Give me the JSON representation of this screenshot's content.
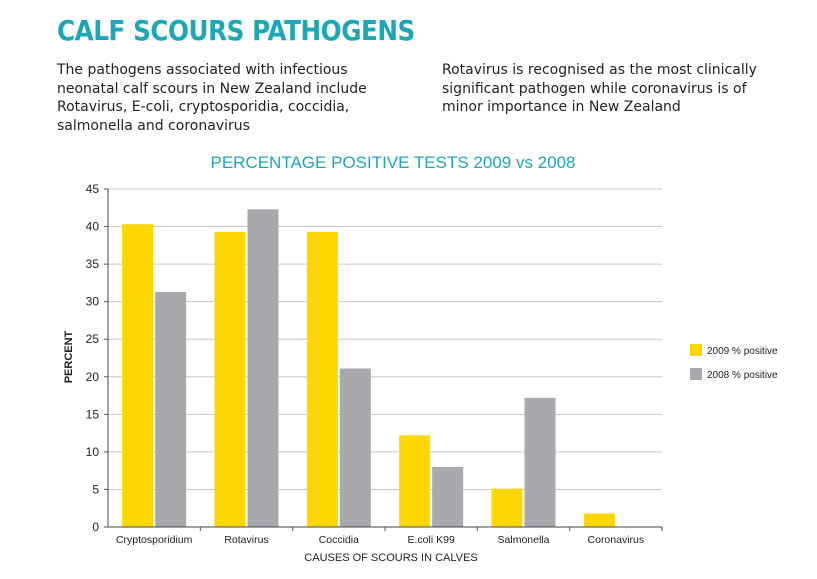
{
  "heading": "CALF SCOURS PATHOGENS",
  "paragraph_left": "The pathogens associated with infectious neonatal calf scours in New Zealand include Rotavirus, E-coli, cryptosporidia, coccidia, salmonella and coronavirus",
  "paragraph_right": "Rotavirus is recognised as the most clinically significant pathogen while coronavirus is of minor importance in New Zealand",
  "chart_data": {
    "type": "bar",
    "title": "PERCENTAGE POSITIVE TESTS 2009 vs 2008",
    "xlabel": "CAUSES OF SCOURS IN CALVES",
    "ylabel": "PERCENT",
    "categories": [
      "Cryptosporidium",
      "Rotavirus",
      "Coccidia",
      "E.coli K99",
      "Salmonella",
      "Coronavirus"
    ],
    "series": [
      {
        "name": "2009 % positive",
        "color": "#ffd700",
        "values": [
          40.3,
          39.3,
          39.3,
          12.2,
          5.1,
          1.8
        ]
      },
      {
        "name": "2008 % positive",
        "color": "#a7a9ac",
        "values": [
          31.3,
          42.3,
          21.1,
          8.0,
          17.2,
          0
        ]
      }
    ],
    "ylim": [
      0,
      45
    ],
    "yticks": [
      0,
      5,
      10,
      15,
      20,
      25,
      30,
      35,
      40,
      45
    ],
    "grid": true,
    "legend_position": "right",
    "title_color": "#1aa7b8"
  }
}
